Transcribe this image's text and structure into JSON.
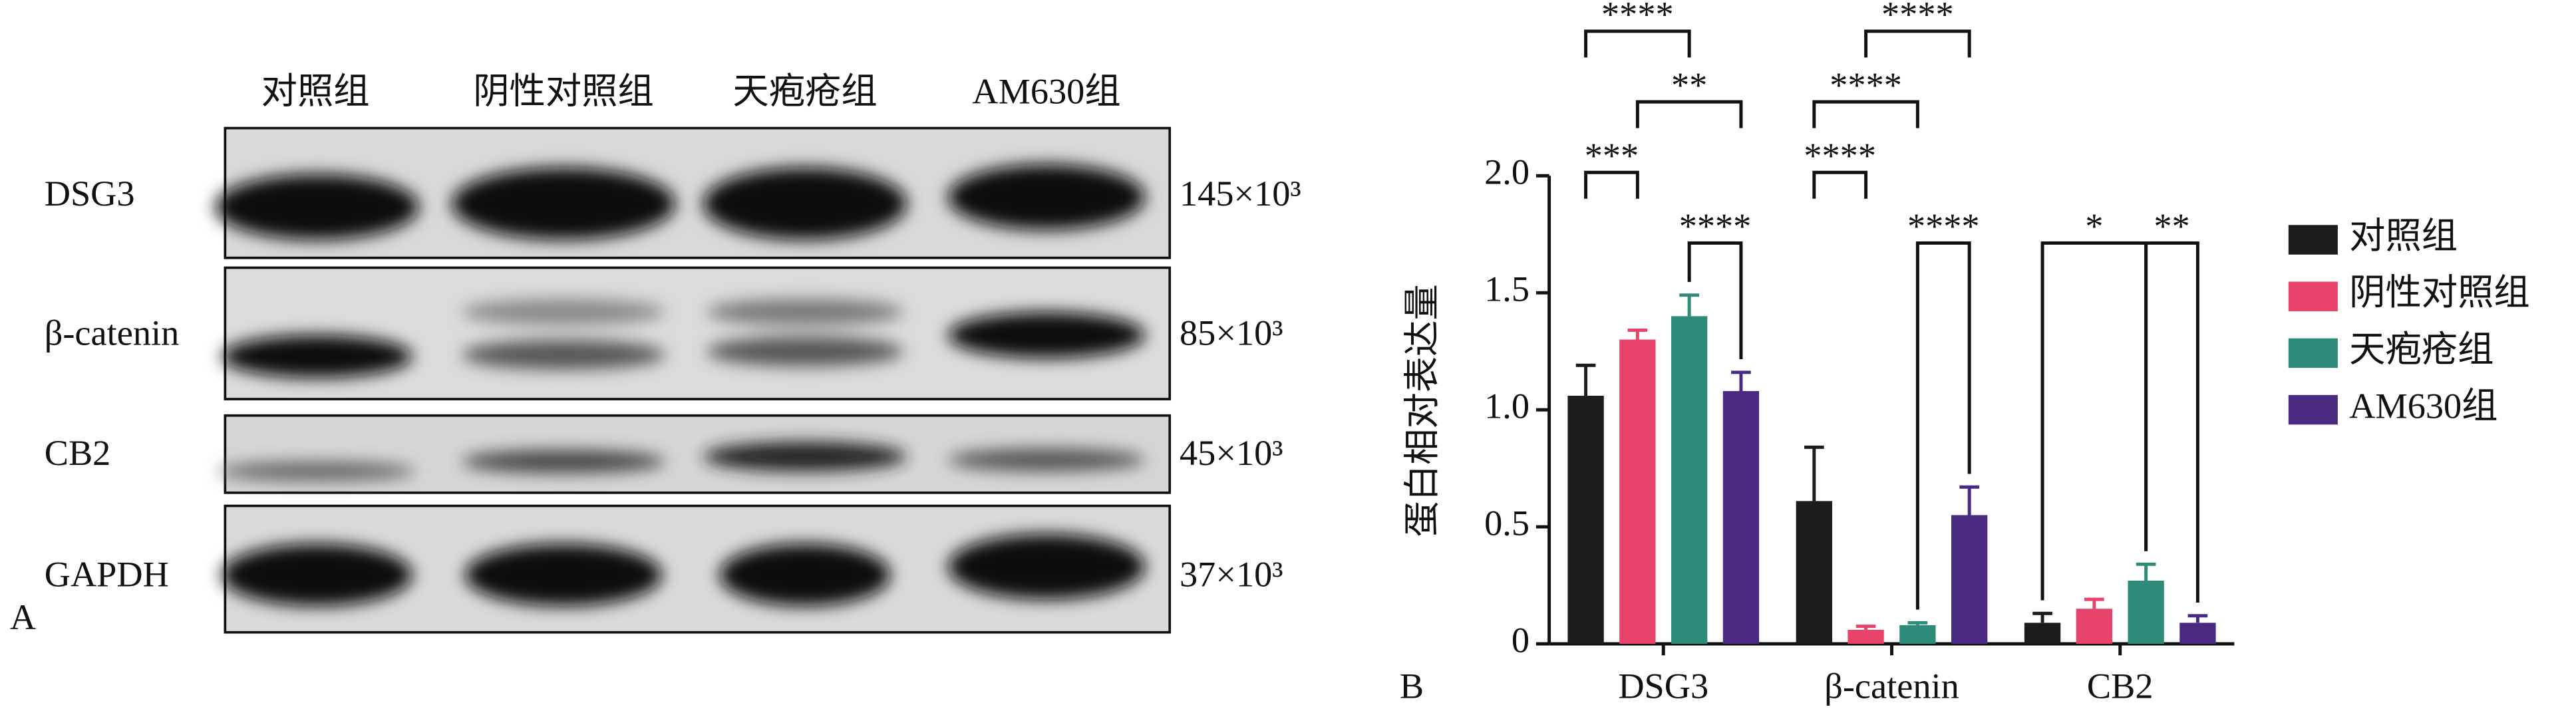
{
  "panel_a": {
    "label": "A",
    "columns": [
      "对照组",
      "阴性对照组",
      "天疱疮组",
      "AM630组"
    ],
    "rows": [
      {
        "name": "DSG3",
        "weight": "145×10³"
      },
      {
        "name": "β-catenin",
        "weight": "85×10³"
      },
      {
        "name": "CB2",
        "weight": "45×10³"
      },
      {
        "name": "GAPDH",
        "weight": "37×10³"
      }
    ]
  },
  "chart_data": {
    "type": "bar",
    "panel_label": "B",
    "ylabel": "蛋白相对表达量",
    "categories": [
      "DSG3",
      "β-catenin",
      "CB2"
    ],
    "series": [
      {
        "name": "对照组",
        "color": "#1c1c1c",
        "values": [
          1.06,
          0.61,
          0.09
        ],
        "errors": [
          0.13,
          0.23,
          0.04
        ]
      },
      {
        "name": "阴性对照组",
        "color": "#e8436a",
        "values": [
          1.3,
          0.06,
          0.15
        ],
        "errors": [
          0.04,
          0.015,
          0.04
        ]
      },
      {
        "name": "天疱疮组",
        "color": "#2e8b7a",
        "values": [
          1.4,
          0.08,
          0.27
        ],
        "errors": [
          0.09,
          0.01,
          0.07
        ]
      },
      {
        "name": "AM630组",
        "color": "#4a2a80",
        "values": [
          1.08,
          0.55,
          0.09
        ],
        "errors": [
          0.08,
          0.12,
          0.03
        ]
      }
    ],
    "ylim": [
      0,
      2
    ],
    "yticks": [
      0,
      0.5,
      {
        "value": 1,
        "label": "1.0"
      },
      1.5,
      {
        "value": 2,
        "label": "2.0"
      }
    ],
    "legend": "right",
    "annotations": [
      "****",
      "**",
      "***",
      "****",
      "****",
      "****",
      "****",
      "****",
      "*",
      "**"
    ]
  }
}
